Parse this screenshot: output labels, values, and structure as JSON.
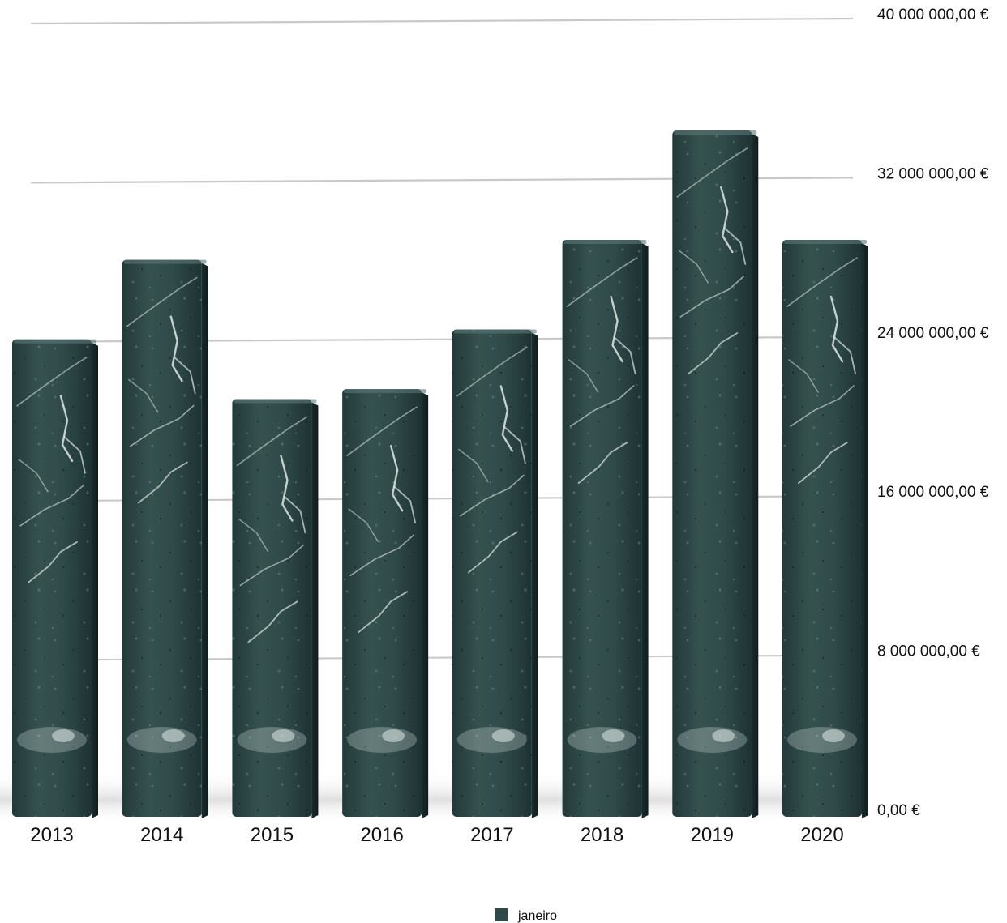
{
  "chart_data": {
    "type": "bar",
    "categories": [
      "2013",
      "2014",
      "2015",
      "2016",
      "2017",
      "2018",
      "2019",
      "2020"
    ],
    "series": [
      {
        "name": "janeiro",
        "values": [
          24000000,
          28000000,
          21000000,
          21500000,
          24500000,
          29000000,
          34500000,
          29000000
        ]
      }
    ],
    "ylim": [
      0,
      40000000
    ],
    "yticks": [
      0,
      8000000,
      16000000,
      24000000,
      32000000,
      40000000
    ],
    "ytick_labels": [
      "0,00 €",
      "8 000 000,00 €",
      "16 000 000,00 €",
      "24 000 000,00 €",
      "32 000 000,00 €",
      "40 000 000,00 €"
    ],
    "grid": true,
    "legend_position": "bottom",
    "axis_position": "right",
    "colors": {
      "bar_main": "#2e4a4b",
      "bar_dark": "#1b2e2f",
      "bar_light": "#5b7877",
      "vein": "#dfe9e8",
      "grid": "#c9c9c9"
    }
  }
}
